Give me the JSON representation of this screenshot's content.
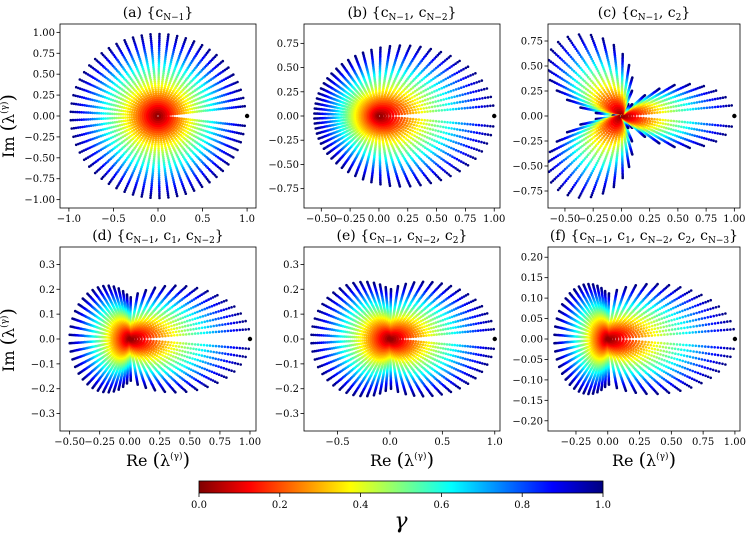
{
  "figure": {
    "colorbar": {
      "label": "γ",
      "ticks": [
        "0.0",
        "0.2",
        "0.4",
        "0.6",
        "0.8",
        "1.0"
      ],
      "range": [
        0,
        1
      ],
      "colormap": "jet-reversed",
      "stops": [
        "#7f0000",
        "#ff0000",
        "#ff8000",
        "#ffff00",
        "#80ff80",
        "#00ffff",
        "#0080ff",
        "#0000ff",
        "#00007f"
      ]
    },
    "ylabel": "Im(λ(γ))",
    "xlabel": "Re(λ(γ))"
  },
  "chart_data": [
    {
      "type": "scatter",
      "title": "(a) {c_{N−1}}",
      "title_main": "(a) {c",
      "title_sub": "N−1",
      "title_end": "}",
      "shape": "disk",
      "xlim": [
        -1.1,
        1.1
      ],
      "ylim": [
        -1.1,
        1.1
      ],
      "xticks": [
        "−1.0",
        "−0.5",
        "0.0",
        "0.5",
        "1.0"
      ],
      "xtick_vals": [
        -1,
        -0.5,
        0,
        0.5,
        1
      ],
      "yticks": [
        "−1.00",
        "−0.75",
        "−0.50",
        "−0.25",
        "0.00",
        "0.25",
        "0.50",
        "0.75",
        "1.00"
      ],
      "ytick_vals": [
        -1,
        -0.75,
        -0.5,
        -0.25,
        0,
        0.25,
        0.5,
        0.75,
        1
      ],
      "marker_point": [
        1,
        0
      ]
    },
    {
      "type": "scatter",
      "title": "(b) {c_{N−1}, c_{N−2}}",
      "title_main": "(b) {c",
      "title_sub": "N−1",
      "title_end": ", c",
      "title_sub2": "N−2",
      "title_end2": "}",
      "shape": "cardioid",
      "xlim": [
        -0.65,
        1.05
      ],
      "ylim": [
        -0.95,
        0.95
      ],
      "xticks": [
        "−0.50",
        "−0.25",
        "0.00",
        "0.25",
        "0.50",
        "0.75",
        "1.00"
      ],
      "xtick_vals": [
        -0.5,
        -0.25,
        0,
        0.25,
        0.5,
        0.75,
        1
      ],
      "yticks": [
        "−0.75",
        "−0.50",
        "−0.25",
        "0.00",
        "0.25",
        "0.50",
        "0.75"
      ],
      "ytick_vals": [
        -0.75,
        -0.5,
        -0.25,
        0,
        0.25,
        0.5,
        0.75
      ],
      "marker_point": [
        1,
        0
      ]
    },
    {
      "type": "scatter",
      "title": "(c) {c_{N−1}, c_2}",
      "title_main": "(c) {c",
      "title_sub": "N−1",
      "title_end": ", c",
      "title_sub2": "2",
      "title_end2": "}",
      "shape": "trefoil",
      "xlim": [
        -0.65,
        1.05
      ],
      "ylim": [
        -0.92,
        0.92
      ],
      "xticks": [
        "−0.50",
        "−0.25",
        "0.00",
        "0.25",
        "0.50",
        "0.75",
        "1.00"
      ],
      "xtick_vals": [
        -0.5,
        -0.25,
        0,
        0.25,
        0.5,
        0.75,
        1
      ],
      "yticks": [
        "−0.75",
        "−0.50",
        "−0.25",
        "0.00",
        "0.25",
        "0.50",
        "0.75"
      ],
      "ytick_vals": [
        -0.75,
        -0.5,
        -0.25,
        0,
        0.25,
        0.5,
        0.75
      ],
      "marker_point": [
        1,
        0
      ]
    },
    {
      "type": "scatter",
      "title": "(d) {c_{N−1}, c_1, c_{N−2}}",
      "title_main": "(d) {c",
      "title_sub": "N−1",
      "title_end": ", c",
      "title_sub2": "1",
      "title_end2": ", c",
      "title_sub3": "N−2",
      "title_end3": "}",
      "shape": "wing",
      "xlim": [
        -0.58,
        1.05
      ],
      "ylim": [
        -0.37,
        0.37
      ],
      "xticks": [
        "−0.50",
        "−0.25",
        "0.00",
        "0.25",
        "0.50",
        "0.75",
        "1.00"
      ],
      "xtick_vals": [
        -0.5,
        -0.25,
        0,
        0.25,
        0.5,
        0.75,
        1
      ],
      "yticks": [
        "−0.3",
        "−0.2",
        "−0.1",
        "0.0",
        "0.1",
        "0.2",
        "0.3"
      ],
      "ytick_vals": [
        -0.3,
        -0.2,
        -0.1,
        0,
        0.1,
        0.2,
        0.3
      ],
      "marker_point": [
        1,
        0
      ]
    },
    {
      "type": "scatter",
      "title": "(e) {c_{N−1}, c_{N−2}, c_2}",
      "title_main": "(e) {c",
      "title_sub": "N−1",
      "title_end": ", c",
      "title_sub2": "N−2",
      "title_end2": ", c",
      "title_sub3": "2",
      "title_end3": "}",
      "shape": "arrow",
      "xlim": [
        -0.82,
        1.05
      ],
      "ylim": [
        -0.37,
        0.37
      ],
      "xticks": [
        "−0.5",
        "0.0",
        "0.5",
        "1.0"
      ],
      "xtick_vals": [
        -0.5,
        0,
        0.5,
        1
      ],
      "yticks": [
        "−0.3",
        "−0.2",
        "−0.1",
        "0.0",
        "0.1",
        "0.2",
        "0.3"
      ],
      "ytick_vals": [
        -0.3,
        -0.2,
        -0.1,
        0,
        0.1,
        0.2,
        0.3
      ],
      "marker_point": [
        1,
        0
      ]
    },
    {
      "type": "scatter",
      "title": "(f) {c_{N−1}, c_1, c_{N−2}, c_2, c_{N−3}}",
      "title_main": "(f) {c",
      "title_sub": "N−1",
      "title_end": ", c",
      "title_sub2": "1",
      "title_end2": ", c",
      "title_sub3": "N−2",
      "title_end3": ", c",
      "title_sub4": "2",
      "title_end4": ", c",
      "title_sub5": "N−3",
      "title_end5": "}",
      "shape": "wing2",
      "xlim": [
        -0.47,
        1.04
      ],
      "ylim": [
        -0.225,
        0.225
      ],
      "xticks": [
        "−0.25",
        "0.00",
        "0.25",
        "0.50",
        "0.75",
        "1.00"
      ],
      "xtick_vals": [
        -0.25,
        0,
        0.25,
        0.5,
        0.75,
        1
      ],
      "yticks": [
        "−0.20",
        "−0.15",
        "−0.10",
        "−0.05",
        "0.00",
        "0.05",
        "0.10",
        "0.15",
        "0.20"
      ],
      "ytick_vals": [
        -0.2,
        -0.15,
        -0.1,
        -0.05,
        0,
        0.05,
        0.1,
        0.15,
        0.2
      ],
      "marker_point": [
        1,
        0
      ]
    }
  ]
}
